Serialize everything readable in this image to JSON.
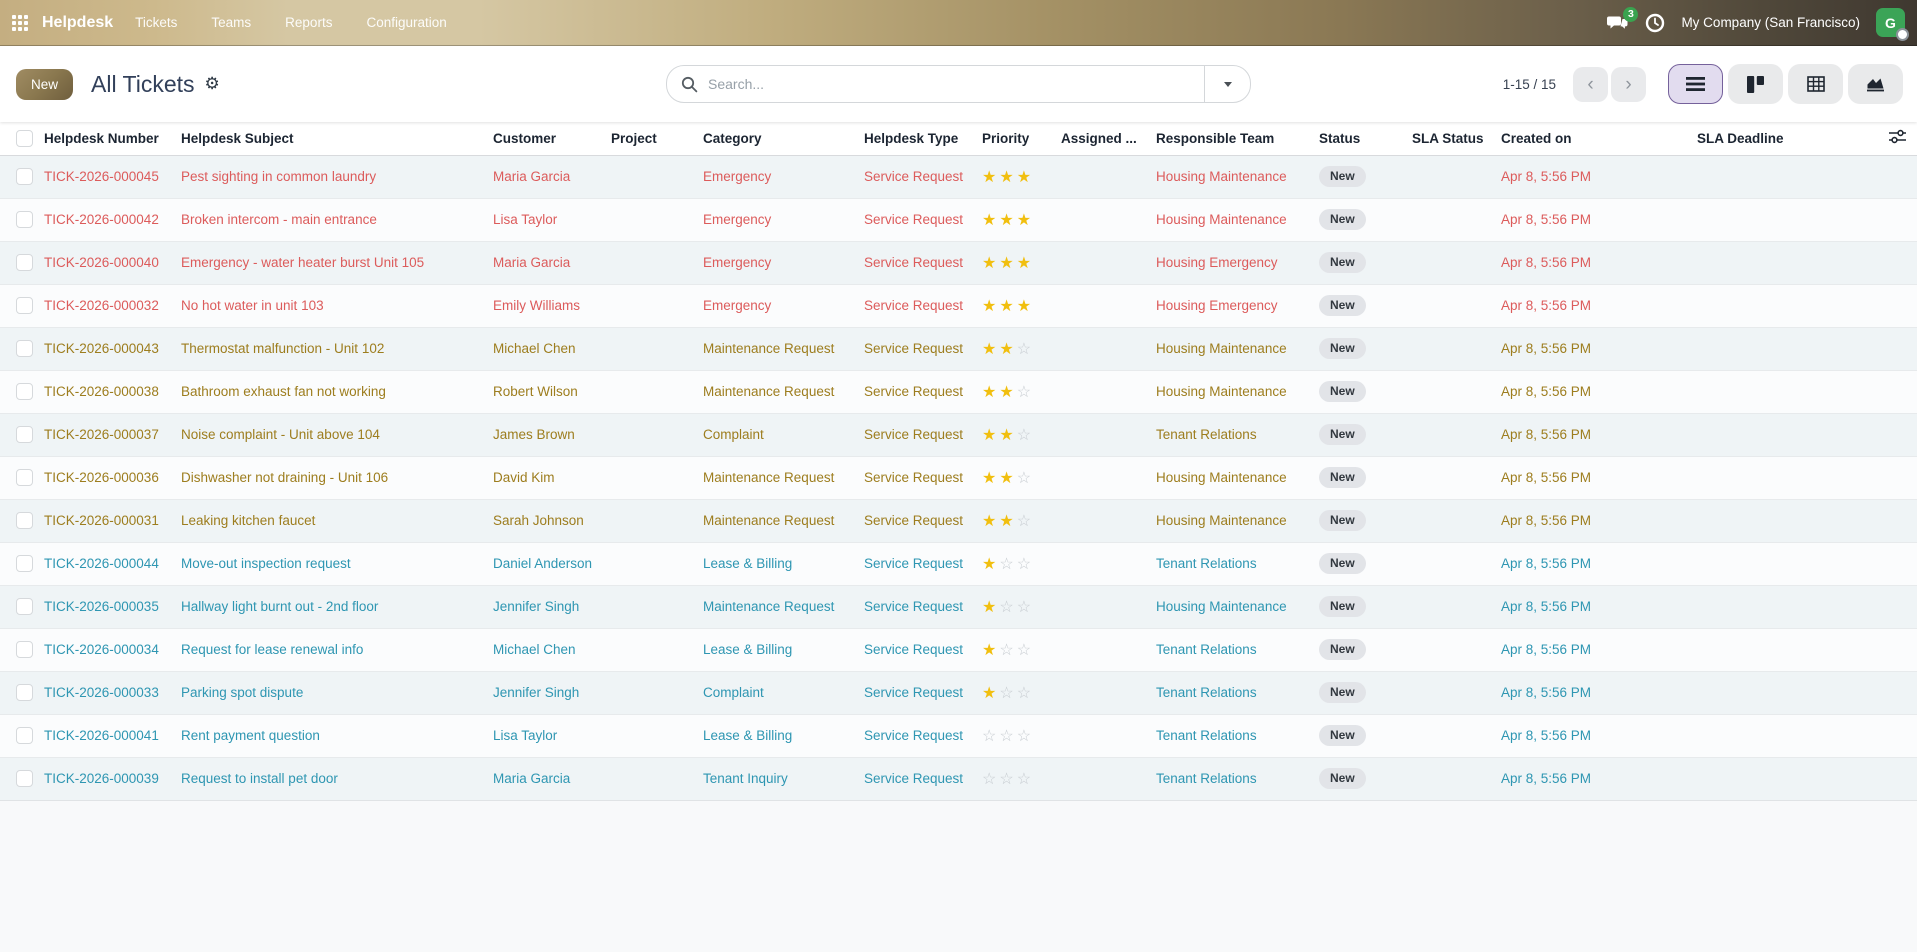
{
  "topbar": {
    "app_name": "Helpdesk",
    "menus": [
      "Tickets",
      "Teams",
      "Reports",
      "Configuration"
    ],
    "message_count": "3",
    "company": "My Company (San Francisco)",
    "avatar_letter": "G"
  },
  "control_panel": {
    "new_button": "New",
    "title": "All Tickets",
    "search_placeholder": "Search...",
    "pager": "1-15 / 15",
    "pager_prev": "‹",
    "pager_next": "›",
    "views": [
      "list",
      "kanban",
      "pivot",
      "graph"
    ],
    "active_view": "list"
  },
  "table": {
    "columns": [
      "Helpdesk Number",
      "Helpdesk Subject",
      "Customer",
      "Project",
      "Category",
      "Helpdesk Type",
      "Priority",
      "Assigned ...",
      "Responsible Team",
      "Status",
      "SLA Status",
      "Created on",
      "SLA Deadline"
    ],
    "rows": [
      {
        "number": "TICK-2026-000045",
        "subject": "Pest sighting in common laundry",
        "customer": "Maria Garcia",
        "project": "",
        "category": "Emergency",
        "type": "Service Request",
        "priority": 3,
        "assigned": "",
        "team": "Housing Maintenance",
        "status": "New",
        "sla_status": "",
        "created": "Apr 8, 5:56 PM",
        "sla_deadline": "",
        "severity": "danger"
      },
      {
        "number": "TICK-2026-000042",
        "subject": "Broken intercom - main entrance",
        "customer": "Lisa Taylor",
        "project": "",
        "category": "Emergency",
        "type": "Service Request",
        "priority": 3,
        "assigned": "",
        "team": "Housing Maintenance",
        "status": "New",
        "sla_status": "",
        "created": "Apr 8, 5:56 PM",
        "sla_deadline": "",
        "severity": "danger"
      },
      {
        "number": "TICK-2026-000040",
        "subject": "Emergency - water heater burst Unit 105",
        "customer": "Maria Garcia",
        "project": "",
        "category": "Emergency",
        "type": "Service Request",
        "priority": 3,
        "assigned": "",
        "team": "Housing Emergency",
        "status": "New",
        "sla_status": "",
        "created": "Apr 8, 5:56 PM",
        "sla_deadline": "",
        "severity": "danger"
      },
      {
        "number": "TICK-2026-000032",
        "subject": "No hot water in unit 103",
        "customer": "Emily Williams",
        "project": "",
        "category": "Emergency",
        "type": "Service Request",
        "priority": 3,
        "assigned": "",
        "team": "Housing Emergency",
        "status": "New",
        "sla_status": "",
        "created": "Apr 8, 5:56 PM",
        "sla_deadline": "",
        "severity": "danger"
      },
      {
        "number": "TICK-2026-000043",
        "subject": "Thermostat malfunction - Unit 102",
        "customer": "Michael Chen",
        "project": "",
        "category": "Maintenance Request",
        "type": "Service Request",
        "priority": 2,
        "assigned": "",
        "team": "Housing Maintenance",
        "status": "New",
        "sla_status": "",
        "created": "Apr 8, 5:56 PM",
        "sla_deadline": "",
        "severity": "warning"
      },
      {
        "number": "TICK-2026-000038",
        "subject": "Bathroom exhaust fan not working",
        "customer": "Robert Wilson",
        "project": "",
        "category": "Maintenance Request",
        "type": "Service Request",
        "priority": 2,
        "assigned": "",
        "team": "Housing Maintenance",
        "status": "New",
        "sla_status": "",
        "created": "Apr 8, 5:56 PM",
        "sla_deadline": "",
        "severity": "warning"
      },
      {
        "number": "TICK-2026-000037",
        "subject": "Noise complaint - Unit above 104",
        "customer": "James Brown",
        "project": "",
        "category": "Complaint",
        "type": "Service Request",
        "priority": 2,
        "assigned": "",
        "team": "Tenant Relations",
        "status": "New",
        "sla_status": "",
        "created": "Apr 8, 5:56 PM",
        "sla_deadline": "",
        "severity": "warning"
      },
      {
        "number": "TICK-2026-000036",
        "subject": "Dishwasher not draining - Unit 106",
        "customer": "David Kim",
        "project": "",
        "category": "Maintenance Request",
        "type": "Service Request",
        "priority": 2,
        "assigned": "",
        "team": "Housing Maintenance",
        "status": "New",
        "sla_status": "",
        "created": "Apr 8, 5:56 PM",
        "sla_deadline": "",
        "severity": "warning"
      },
      {
        "number": "TICK-2026-000031",
        "subject": "Leaking kitchen faucet",
        "customer": "Sarah Johnson",
        "project": "",
        "category": "Maintenance Request",
        "type": "Service Request",
        "priority": 2,
        "assigned": "",
        "team": "Housing Maintenance",
        "status": "New",
        "sla_status": "",
        "created": "Apr 8, 5:56 PM",
        "sla_deadline": "",
        "severity": "warning"
      },
      {
        "number": "TICK-2026-000044",
        "subject": "Move-out inspection request",
        "customer": "Daniel Anderson",
        "project": "",
        "category": "Lease & Billing",
        "type": "Service Request",
        "priority": 1,
        "assigned": "",
        "team": "Tenant Relations",
        "status": "New",
        "sla_status": "",
        "created": "Apr 8, 5:56 PM",
        "sla_deadline": "",
        "severity": "info"
      },
      {
        "number": "TICK-2026-000035",
        "subject": "Hallway light burnt out - 2nd floor",
        "customer": "Jennifer Singh",
        "project": "",
        "category": "Maintenance Request",
        "type": "Service Request",
        "priority": 1,
        "assigned": "",
        "team": "Housing Maintenance",
        "status": "New",
        "sla_status": "",
        "created": "Apr 8, 5:56 PM",
        "sla_deadline": "",
        "severity": "info"
      },
      {
        "number": "TICK-2026-000034",
        "subject": "Request for lease renewal info",
        "customer": "Michael Chen",
        "project": "",
        "category": "Lease & Billing",
        "type": "Service Request",
        "priority": 1,
        "assigned": "",
        "team": "Tenant Relations",
        "status": "New",
        "sla_status": "",
        "created": "Apr 8, 5:56 PM",
        "sla_deadline": "",
        "severity": "info"
      },
      {
        "number": "TICK-2026-000033",
        "subject": "Parking spot dispute",
        "customer": "Jennifer Singh",
        "project": "",
        "category": "Complaint",
        "type": "Service Request",
        "priority": 1,
        "assigned": "",
        "team": "Tenant Relations",
        "status": "New",
        "sla_status": "",
        "created": "Apr 8, 5:56 PM",
        "sla_deadline": "",
        "severity": "info"
      },
      {
        "number": "TICK-2026-000041",
        "subject": "Rent payment question",
        "customer": "Lisa Taylor",
        "project": "",
        "category": "Lease & Billing",
        "type": "Service Request",
        "priority": 0,
        "assigned": "",
        "team": "Tenant Relations",
        "status": "New",
        "sla_status": "",
        "created": "Apr 8, 5:56 PM",
        "sla_deadline": "",
        "severity": "info"
      },
      {
        "number": "TICK-2026-000039",
        "subject": "Request to install pet door",
        "customer": "Maria Garcia",
        "project": "",
        "category": "Tenant Inquiry",
        "type": "Service Request",
        "priority": 0,
        "assigned": "",
        "team": "Tenant Relations",
        "status": "New",
        "sla_status": "",
        "created": "Apr 8, 5:56 PM",
        "sla_deadline": "",
        "severity": "info"
      }
    ]
  },
  "colors": {
    "danger_row": "#dc5b5b",
    "warning_row": "#9d7d1e",
    "info_row": "#2e96b2",
    "star_filled": "#f1bf0f",
    "star_empty": "#c7ccd1",
    "status_pill_bg": "#e2e4e8",
    "badge_green": "#3aa34f",
    "avatar_green": "#3ba457",
    "active_view_bg": "#e2dcef",
    "active_view_border": "#75619b",
    "topbar_gradient_start": "#d5c7a3",
    "topbar_gradient_end": "#3f3830"
  }
}
